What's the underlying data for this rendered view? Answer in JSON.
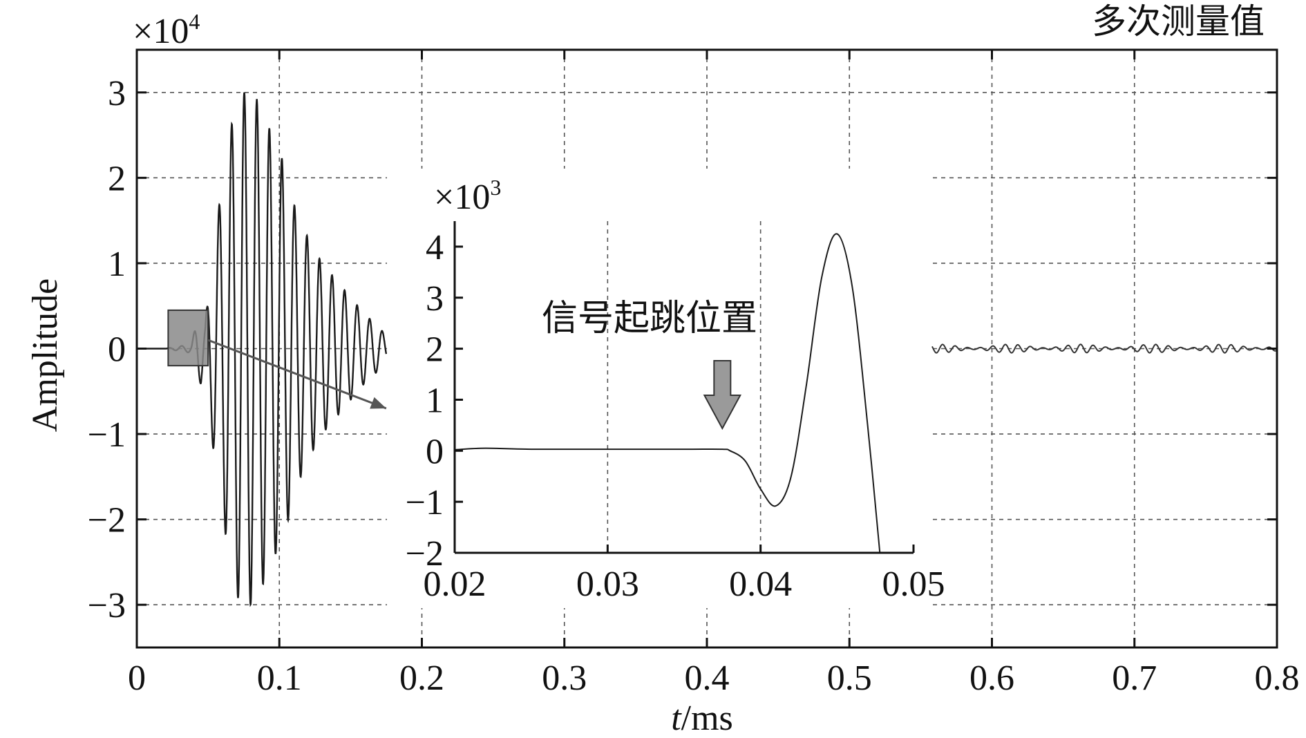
{
  "chart_data": [
    {
      "type": "line",
      "legend": "多次测量值",
      "legend_position": "top-right",
      "xlabel_italic": "t",
      "xlabel_rest": "/ms",
      "ylabel": "Amplitude",
      "y_scale_base": "×10",
      "y_scale_exp": "4",
      "xlim": [
        0,
        0.8
      ],
      "ylim": [
        -3.5,
        3.5
      ],
      "grid": true,
      "x_ticks": [
        0,
        0.1,
        0.2,
        0.3,
        0.4,
        0.5,
        0.6,
        0.7,
        0.8
      ],
      "x_tick_labels": [
        "0",
        "0.1",
        "0.2",
        "0.3",
        "0.4",
        "0.5",
        "0.6",
        "0.7",
        "0.8"
      ],
      "y_ticks": [
        -3,
        -2,
        -1,
        0,
        1,
        2,
        3
      ],
      "y_tick_labels": [
        "−3",
        "−2",
        "−1",
        "0",
        "1",
        "2",
        "3"
      ],
      "series": [
        {
          "description_points": "burst echo waveform (units ×10^4)",
          "x": [
            0,
            0.02,
            0.038,
            0.042,
            0.045,
            0.048,
            0.05,
            0.055,
            0.06,
            0.065,
            0.07,
            0.075,
            0.08,
            0.085,
            0.09,
            0.095,
            0.1,
            0.105,
            0.11,
            0.115,
            0.12,
            0.13,
            0.14,
            0.15,
            0.16,
            0.17,
            0.175
          ],
          "envelope": [
            0,
            0,
            0.05,
            0.3,
            0.42,
            0.3,
            0.6,
            1.4,
            1.9,
            2.5,
            2.9,
            3.0,
            3.0,
            2.9,
            2.7,
            2.5,
            2.3,
            2.1,
            1.7,
            1.5,
            1.3,
            1.0,
            0.8,
            0.6,
            0.4,
            0.25,
            0.15
          ],
          "carrier_period_ms": 0.0088
        }
      ],
      "tail_series": {
        "x_start": 0.558,
        "x_end": 0.8,
        "amplitude": 0.05
      },
      "zoom_box": {
        "x": [
          0.022,
          0.05
        ],
        "y": [
          -0.2,
          0.45
        ]
      },
      "zoom_arrow": {
        "from": [
          0.05,
          0.1
        ],
        "to": [
          0.175,
          -0.7
        ]
      }
    },
    {
      "type": "line",
      "y_scale_base": "×10",
      "y_scale_exp": "3",
      "xlim": [
        0.02,
        0.05
      ],
      "ylim": [
        -2,
        4.5
      ],
      "grid": true,
      "x_ticks": [
        0.02,
        0.03,
        0.04,
        0.05
      ],
      "x_tick_labels": [
        "0.02",
        "0.03",
        "0.04",
        "0.05"
      ],
      "y_ticks": [
        -2,
        -1,
        0,
        1,
        2,
        3,
        4
      ],
      "y_tick_labels": [
        "−2",
        "−1",
        "0",
        "1",
        "2",
        "3",
        "4"
      ],
      "annotation": "信号起跳位置",
      "arrow_x": 0.0375,
      "series": [
        {
          "x": [
            0.02,
            0.022,
            0.025,
            0.03,
            0.035,
            0.0375,
            0.038,
            0.039,
            0.04,
            0.041,
            0.042,
            0.043,
            0.044,
            0.045,
            0.046,
            0.047,
            0.0478
          ],
          "y": [
            0.02,
            0.05,
            0.03,
            0.03,
            0.03,
            0.03,
            0.0,
            -0.2,
            -0.75,
            -1.08,
            -0.5,
            1.3,
            3.4,
            4.25,
            3.2,
            0.5,
            -2
          ]
        }
      ]
    }
  ]
}
